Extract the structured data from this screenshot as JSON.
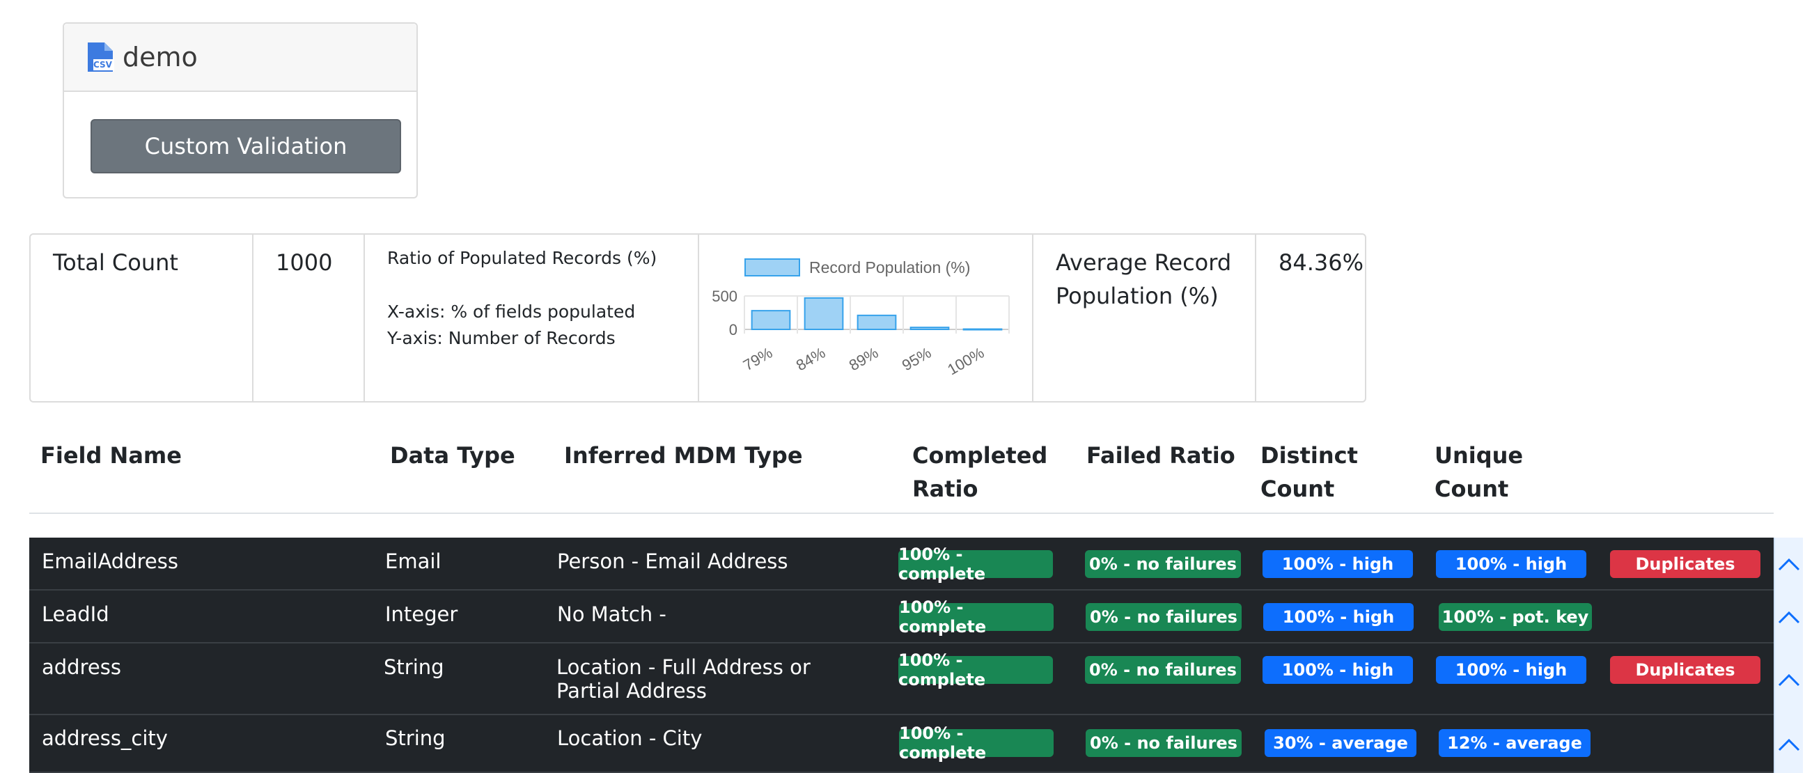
{
  "file": {
    "title": "demo",
    "icon_label": "CSV",
    "icon": "csv-file-icon",
    "custom_validation_label": "Custom Validation"
  },
  "summary": {
    "total_count_label": "Total Count",
    "total_count_value": "1000",
    "ratio_title": "Ratio of Populated Records (%)",
    "ratio_xaxis": "X-axis: % of fields populated",
    "ratio_yaxis": "Y-axis: Number of Records",
    "avg_label_line1": "Average Record",
    "avg_label_line2": "Population (%)",
    "avg_value": "84.36%"
  },
  "chart_data": {
    "type": "bar",
    "title": "",
    "legend": "Record Population (%)",
    "categories": [
      "79%",
      "84%",
      "89%",
      "95%",
      "100%"
    ],
    "series": [
      {
        "name": "Record Population (%)",
        "values": [
          280,
          470,
          210,
          30,
          5
        ]
      }
    ],
    "ylim": [
      0,
      500
    ],
    "yticks": [
      "500",
      "0"
    ],
    "color": "#9fd2f5",
    "border_color": "#36a2eb"
  },
  "field_header": {
    "field_name": "Field Name",
    "data_type": "Data Type",
    "mdm_type": "Inferred MDM Type",
    "completed_line1": "Completed",
    "completed_line2": "Ratio",
    "failed": "Failed Ratio",
    "distinct_line1": "Distinct",
    "distinct_line2": "Count",
    "unique_line1": "Unique",
    "unique_line2": "Count"
  },
  "rows": [
    {
      "field": "EmailAddress",
      "type": "Email",
      "mdm_line1": "Person - Email Address",
      "mdm_line2": "",
      "completed": "100% - complete",
      "failed": "0% - no failures",
      "distinct": "100% - high",
      "unique": "100% - high",
      "dup": "Duplicates"
    },
    {
      "field": "LeadId",
      "type": "Integer",
      "mdm_line1": "No Match -",
      "mdm_line2": "",
      "completed": "100% - complete",
      "failed": "0% - no failures",
      "distinct": "100% - high",
      "unique": "100% - pot. key",
      "dup": ""
    },
    {
      "field": "address",
      "type": "String",
      "mdm_line1": "Location - Full Address or",
      "mdm_line2": "Partial Address",
      "completed": "100% - complete",
      "failed": "0% - no failures",
      "distinct": "100% - high",
      "unique": "100% - high",
      "dup": "Duplicates"
    },
    {
      "field": "address_city",
      "type": "String",
      "mdm_line1": "Location - City",
      "mdm_line2": "",
      "completed": "100% - complete",
      "failed": "0% - no failures",
      "distinct": "30% - average",
      "unique": "12% - average",
      "dup": ""
    }
  ],
  "colors": {
    "complete": "#198754",
    "high": "#0d6efd",
    "duplicates": "#dc3545"
  },
  "expand_icon": "chevron-up-icon"
}
